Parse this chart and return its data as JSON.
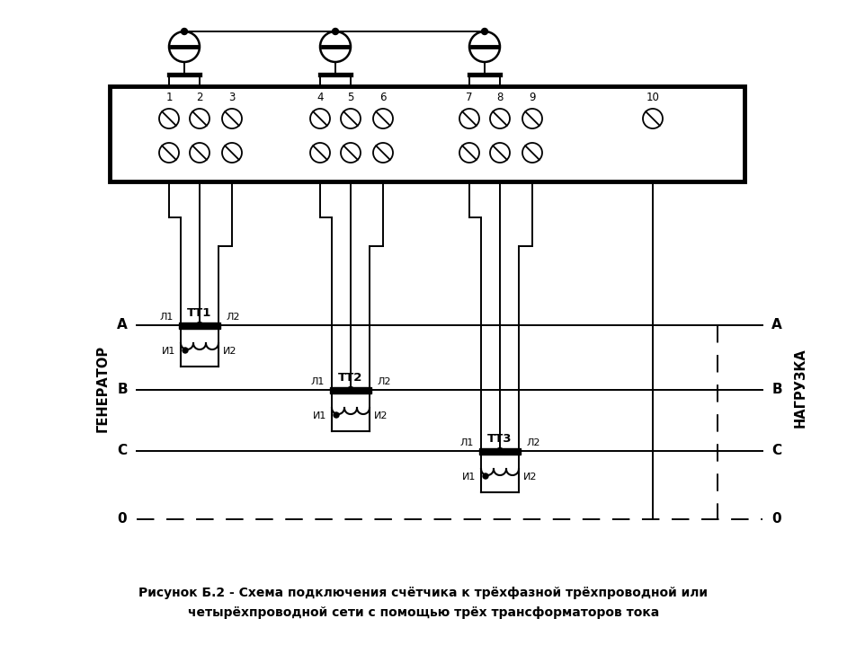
{
  "caption_line1": "Рисунок Б.2 - Схема подключения счётчика к трёхфазной трёхпроводной или",
  "caption_line2": "четырёхпроводной сети с помощью трёх трансформаторов тока",
  "bg_color": "#ffffff",
  "gen_label": "ГЕНЕРАТОР",
  "load_label": "НАГРУЗКА"
}
